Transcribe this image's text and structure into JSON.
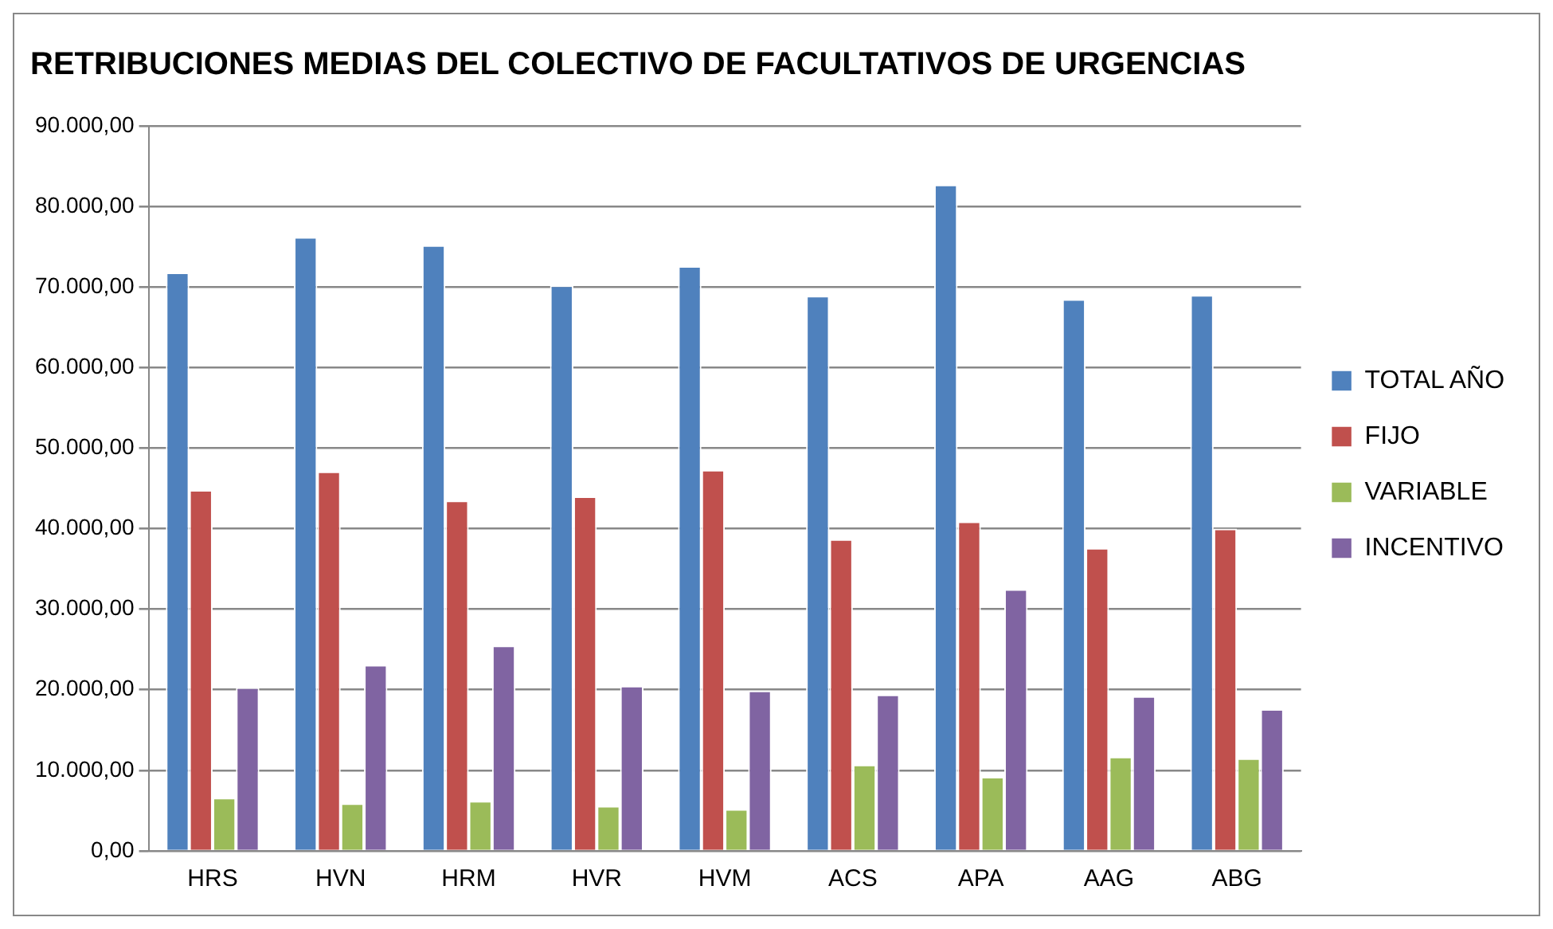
{
  "chart_data": {
    "type": "bar",
    "title": "RETRIBUCIONES MEDIAS DEL COLECTIVO DE FACULTATIVOS DE URGENCIAS",
    "categories": [
      "HRS",
      "HVN",
      "HRM",
      "HVR",
      "HVM",
      "ACS",
      "APA",
      "AAG",
      "ABG"
    ],
    "series": [
      {
        "name": "TOTAL AÑO",
        "color": "#4f81bd",
        "values": [
          71800,
          76200,
          75200,
          70200,
          72600,
          68900,
          82700,
          68500,
          69000
        ]
      },
      {
        "name": "FIJO",
        "color": "#c0504d",
        "values": [
          44800,
          47100,
          43500,
          44000,
          47300,
          38700,
          40900,
          37600,
          40000
        ]
      },
      {
        "name": "VARIABLE",
        "color": "#9bbb59",
        "values": [
          6600,
          5900,
          6200,
          5600,
          5200,
          10700,
          9200,
          11700,
          11500
        ]
      },
      {
        "name": "INCENTIVO",
        "color": "#8064a2",
        "values": [
          20300,
          23100,
          25500,
          20500,
          19900,
          19400,
          32500,
          19200,
          17600
        ]
      }
    ],
    "ylim": [
      0,
      90000
    ],
    "yticks": [
      {
        "value": 0,
        "label": "0,00"
      },
      {
        "value": 10000,
        "label": "10.000,00"
      },
      {
        "value": 20000,
        "label": "20.000,00"
      },
      {
        "value": 30000,
        "label": "30.000,00"
      },
      {
        "value": 40000,
        "label": "40.000,00"
      },
      {
        "value": 50000,
        "label": "50.000,00"
      },
      {
        "value": 60000,
        "label": "60.000,00"
      },
      {
        "value": 70000,
        "label": "70.000,00"
      },
      {
        "value": 80000,
        "label": "80.000,00"
      },
      {
        "value": 90000,
        "label": "90.000,00"
      }
    ],
    "grid": "y",
    "legend": "right"
  }
}
